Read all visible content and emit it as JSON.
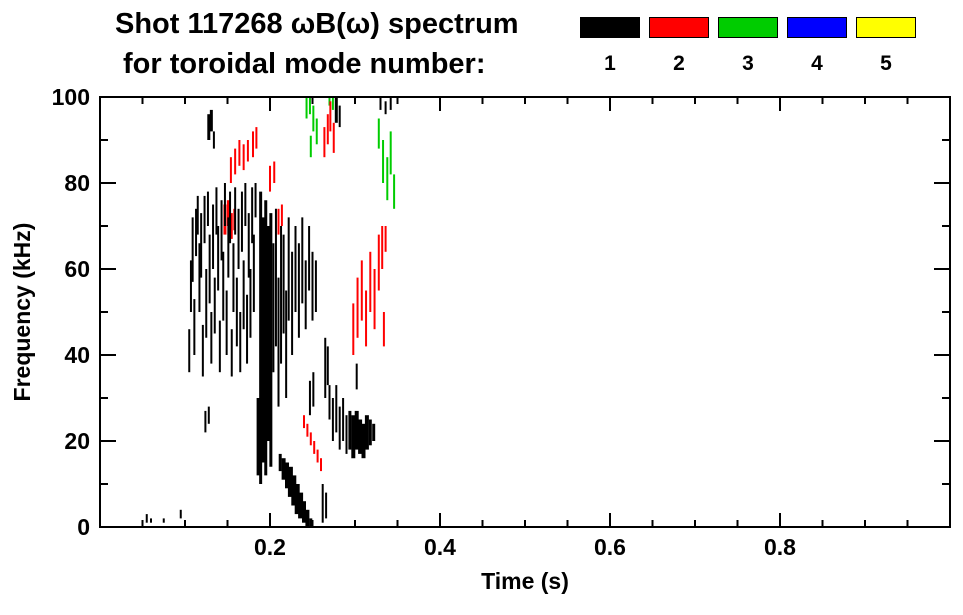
{
  "header": {
    "title_line1": "Shot 117268 ωB(ω) spectrum",
    "title_line2": "for toroidal mode number:",
    "legend": [
      {
        "label": "1",
        "color": "#000000"
      },
      {
        "label": "2",
        "color": "#ff0000"
      },
      {
        "label": "3",
        "color": "#00cc00"
      },
      {
        "label": "4",
        "color": "#0000ff"
      },
      {
        "label": "5",
        "color": "#ffff00"
      }
    ]
  },
  "chart_data": {
    "type": "scatter",
    "title": "Shot 117268 ωB(ω) spectrum for toroidal mode number: 1 2 3 4 5",
    "xlabel": "Time (s)",
    "ylabel": "Frequency (kHz)",
    "xlim": [
      0,
      1.0
    ],
    "ylim": [
      0,
      100
    ],
    "xticks": [
      0.2,
      0.4,
      0.6,
      0.8
    ],
    "yticks": [
      0,
      20,
      40,
      60,
      80,
      100
    ],
    "x_minor_step": 0.05,
    "y_minor_step": 10,
    "grid": false,
    "legend_position": "top",
    "segments_format": "[time_s, freq_lo_kHz, freq_hi_kHz, optional_px_width]",
    "series": [
      {
        "name": "n=1",
        "color": "#000000",
        "segments": [
          [
            0.055,
            1,
            3
          ],
          [
            0.06,
            1,
            2
          ],
          [
            0.075,
            1,
            2
          ],
          [
            0.095,
            2,
            4
          ],
          [
            0.105,
            36,
            46
          ],
          [
            0.107,
            50,
            62
          ],
          [
            0.109,
            57,
            72
          ],
          [
            0.111,
            40,
            53
          ],
          [
            0.113,
            63,
            74
          ],
          [
            0.115,
            68,
            77
          ],
          [
            0.117,
            50,
            66
          ],
          [
            0.119,
            58,
            73
          ],
          [
            0.121,
            35,
            47
          ],
          [
            0.123,
            66,
            77
          ],
          [
            0.125,
            44,
            60
          ],
          [
            0.127,
            70,
            78
          ],
          [
            0.129,
            52,
            68
          ],
          [
            0.131,
            38,
            50
          ],
          [
            0.133,
            60,
            75
          ],
          [
            0.135,
            45,
            58
          ],
          [
            0.137,
            68,
            79
          ],
          [
            0.139,
            55,
            70
          ],
          [
            0.141,
            36,
            48
          ],
          [
            0.143,
            62,
            76
          ],
          [
            0.145,
            48,
            64
          ],
          [
            0.147,
            70,
            80
          ],
          [
            0.149,
            40,
            55
          ],
          [
            0.151,
            58,
            72
          ],
          [
            0.153,
            66,
            78
          ],
          [
            0.155,
            35,
            46
          ],
          [
            0.157,
            50,
            66
          ],
          [
            0.159,
            68,
            79
          ],
          [
            0.161,
            42,
            58
          ],
          [
            0.163,
            60,
            74
          ],
          [
            0.165,
            36,
            50
          ],
          [
            0.167,
            64,
            78
          ],
          [
            0.169,
            46,
            62
          ],
          [
            0.171,
            70,
            80
          ],
          [
            0.173,
            38,
            54
          ],
          [
            0.175,
            58,
            73
          ],
          [
            0.177,
            44,
            60
          ],
          [
            0.179,
            66,
            79
          ],
          [
            0.181,
            50,
            68
          ],
          [
            0.183,
            72,
            80
          ],
          [
            0.186,
            12,
            30,
            3
          ],
          [
            0.189,
            10,
            78,
            3
          ],
          [
            0.192,
            15,
            72,
            3
          ],
          [
            0.195,
            12,
            76,
            3
          ],
          [
            0.198,
            20,
            70,
            3
          ],
          [
            0.201,
            14,
            73,
            3
          ],
          [
            0.204,
            36,
            66
          ],
          [
            0.207,
            42,
            74
          ],
          [
            0.21,
            28,
            58
          ],
          [
            0.213,
            38,
            70
          ],
          [
            0.216,
            45,
            68
          ],
          [
            0.219,
            30,
            55
          ],
          [
            0.222,
            48,
            72
          ],
          [
            0.226,
            40,
            64
          ],
          [
            0.23,
            50,
            70
          ],
          [
            0.234,
            44,
            66
          ],
          [
            0.238,
            52,
            72
          ],
          [
            0.242,
            46,
            62
          ],
          [
            0.246,
            55,
            70
          ],
          [
            0.25,
            48,
            64
          ],
          [
            0.254,
            50,
            62
          ],
          [
            0.212,
            13,
            17,
            3
          ],
          [
            0.216,
            11,
            16,
            4
          ],
          [
            0.22,
            9,
            15,
            4
          ],
          [
            0.224,
            7,
            14,
            5
          ],
          [
            0.228,
            5,
            12,
            5
          ],
          [
            0.232,
            3,
            10,
            5
          ],
          [
            0.236,
            2,
            8,
            5
          ],
          [
            0.24,
            1,
            6,
            4
          ],
          [
            0.244,
            0,
            4,
            4
          ],
          [
            0.248,
            0,
            2,
            3
          ],
          [
            0.128,
            90,
            96,
            3
          ],
          [
            0.131,
            92,
            97,
            3
          ],
          [
            0.134,
            88,
            92
          ],
          [
            0.124,
            22,
            27
          ],
          [
            0.128,
            24,
            28
          ],
          [
            0.247,
            26,
            34
          ],
          [
            0.251,
            28,
            36
          ],
          [
            0.262,
            1,
            10
          ],
          [
            0.266,
            2,
            8
          ],
          [
            0.265,
            30,
            44
          ],
          [
            0.268,
            33,
            42
          ],
          [
            0.27,
            25,
            33
          ],
          [
            0.274,
            20,
            30
          ],
          [
            0.278,
            22,
            33
          ],
          [
            0.282,
            18,
            28
          ],
          [
            0.286,
            20,
            30
          ],
          [
            0.29,
            17,
            26
          ],
          [
            0.294,
            18,
            27,
            3
          ],
          [
            0.298,
            16,
            26,
            4
          ],
          [
            0.302,
            18,
            27,
            4
          ],
          [
            0.306,
            17,
            25,
            4
          ],
          [
            0.31,
            16,
            24,
            4
          ],
          [
            0.314,
            18,
            26,
            4
          ],
          [
            0.318,
            19,
            25,
            3
          ],
          [
            0.322,
            20,
            24,
            3
          ],
          [
            0.302,
            32,
            38
          ],
          [
            0.278,
            94,
            100,
            3
          ],
          [
            0.282,
            93,
            98
          ],
          [
            0.33,
            97,
            100
          ],
          [
            0.336,
            96,
            99
          ],
          [
            0.342,
            97,
            100
          ]
        ]
      },
      {
        "name": "n=2",
        "color": "#ff0000",
        "segments": [
          [
            0.147,
            68,
            75,
            3
          ],
          [
            0.151,
            70,
            76,
            3
          ],
          [
            0.155,
            67,
            73
          ],
          [
            0.158,
            69,
            74
          ],
          [
            0.154,
            80,
            86
          ],
          [
            0.159,
            82,
            88
          ],
          [
            0.164,
            84,
            90
          ],
          [
            0.169,
            83,
            89
          ],
          [
            0.174,
            85,
            90
          ],
          [
            0.18,
            86,
            92
          ],
          [
            0.184,
            88,
            93
          ],
          [
            0.19,
            42,
            58
          ],
          [
            0.193,
            52,
            70
          ],
          [
            0.196,
            46,
            62
          ],
          [
            0.2,
            78,
            84
          ],
          [
            0.205,
            80,
            85
          ],
          [
            0.21,
            68,
            74
          ],
          [
            0.214,
            70,
            75
          ],
          [
            0.24,
            23,
            26
          ],
          [
            0.244,
            21,
            24
          ],
          [
            0.248,
            19,
            22
          ],
          [
            0.252,
            17,
            20
          ],
          [
            0.256,
            15,
            18
          ],
          [
            0.26,
            13,
            16
          ],
          [
            0.264,
            86,
            93
          ],
          [
            0.268,
            89,
            96
          ],
          [
            0.271,
            92,
            99
          ],
          [
            0.275,
            87,
            94
          ],
          [
            0.298,
            40,
            52
          ],
          [
            0.303,
            44,
            58
          ],
          [
            0.308,
            48,
            62
          ],
          [
            0.313,
            42,
            55
          ],
          [
            0.318,
            50,
            64
          ],
          [
            0.323,
            46,
            60
          ],
          [
            0.328,
            55,
            68
          ],
          [
            0.332,
            60,
            70
          ],
          [
            0.336,
            64,
            70
          ],
          [
            0.334,
            42,
            50
          ]
        ]
      },
      {
        "name": "n=3",
        "color": "#00cc00",
        "segments": [
          [
            0.243,
            95,
            100
          ],
          [
            0.247,
            96,
            100
          ],
          [
            0.251,
            92,
            98
          ],
          [
            0.255,
            89,
            95
          ],
          [
            0.248,
            86,
            91
          ],
          [
            0.27,
            98,
            100
          ],
          [
            0.274,
            97,
            100
          ],
          [
            0.328,
            88,
            95
          ],
          [
            0.333,
            80,
            90
          ],
          [
            0.338,
            76,
            86
          ],
          [
            0.342,
            82,
            92
          ],
          [
            0.346,
            74,
            82
          ]
        ]
      },
      {
        "name": "n=4",
        "color": "#0000ff",
        "segments": []
      },
      {
        "name": "n=5",
        "color": "#ffff00",
        "segments": []
      }
    ]
  }
}
